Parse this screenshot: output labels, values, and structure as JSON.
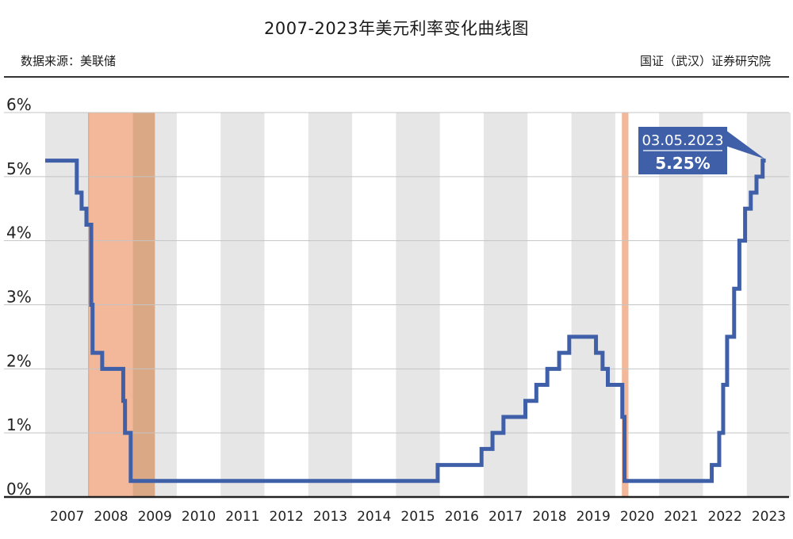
{
  "title": "2007-2023年美元利率变化曲线图",
  "source": "数据来源：美联储",
  "credit": "国证（武汉）证券研究院",
  "colors": {
    "line": "#3f60a8",
    "band_gray": "#e6e6e6",
    "recession": "#f2b08f",
    "overlap": "#dba886",
    "grid": "#c4c4c4",
    "annotation_bg": "#3f60a8",
    "annotation_text": "#ffffff"
  },
  "chart_data": {
    "type": "line",
    "step": true,
    "title": "2007-2023年美元利率变化曲线图",
    "x_categories": [
      "2007",
      "2008",
      "2009",
      "2010",
      "2011",
      "2012",
      "2013",
      "2014",
      "2015",
      "2016",
      "2017",
      "2018",
      "2019",
      "2020",
      "2021",
      "2022",
      "2023"
    ],
    "y_ticks": [
      "0%",
      "1%",
      "2%",
      "3%",
      "4%",
      "5%",
      "6%"
    ],
    "ylim": [
      0,
      6
    ],
    "grid": true,
    "alternating_year_bands": true,
    "shaded_periods": [
      {
        "start": 2007.98,
        "end": 2009.5
      },
      {
        "start": 2020.15,
        "end": 2020.3
      }
    ],
    "series": [
      {
        "points": [
          [
            2007.0,
            5.25
          ],
          [
            2007.72,
            4.75
          ],
          [
            2007.83,
            4.5
          ],
          [
            2007.94,
            4.25
          ],
          [
            2008.05,
            3.0
          ],
          [
            2008.08,
            2.25
          ],
          [
            2008.3,
            2.0
          ],
          [
            2008.78,
            1.5
          ],
          [
            2008.82,
            1.0
          ],
          [
            2008.95,
            0.25
          ],
          [
            2015.95,
            0.5
          ],
          [
            2016.95,
            0.75
          ],
          [
            2017.2,
            1.0
          ],
          [
            2017.45,
            1.25
          ],
          [
            2017.95,
            1.5
          ],
          [
            2018.2,
            1.75
          ],
          [
            2018.45,
            2.0
          ],
          [
            2018.72,
            2.25
          ],
          [
            2018.95,
            2.5
          ],
          [
            2019.56,
            2.25
          ],
          [
            2019.71,
            2.0
          ],
          [
            2019.83,
            1.75
          ],
          [
            2020.16,
            1.25
          ],
          [
            2020.21,
            0.25
          ],
          [
            2022.2,
            0.5
          ],
          [
            2022.37,
            1.0
          ],
          [
            2022.46,
            1.75
          ],
          [
            2022.55,
            2.5
          ],
          [
            2022.71,
            3.25
          ],
          [
            2022.83,
            4.0
          ],
          [
            2022.96,
            4.5
          ],
          [
            2023.09,
            4.75
          ],
          [
            2023.22,
            5.0
          ],
          [
            2023.36,
            5.25
          ],
          [
            2023.43,
            5.25
          ]
        ]
      }
    ],
    "annotation": {
      "date": "03.05.2023",
      "value": "5.25%"
    }
  }
}
